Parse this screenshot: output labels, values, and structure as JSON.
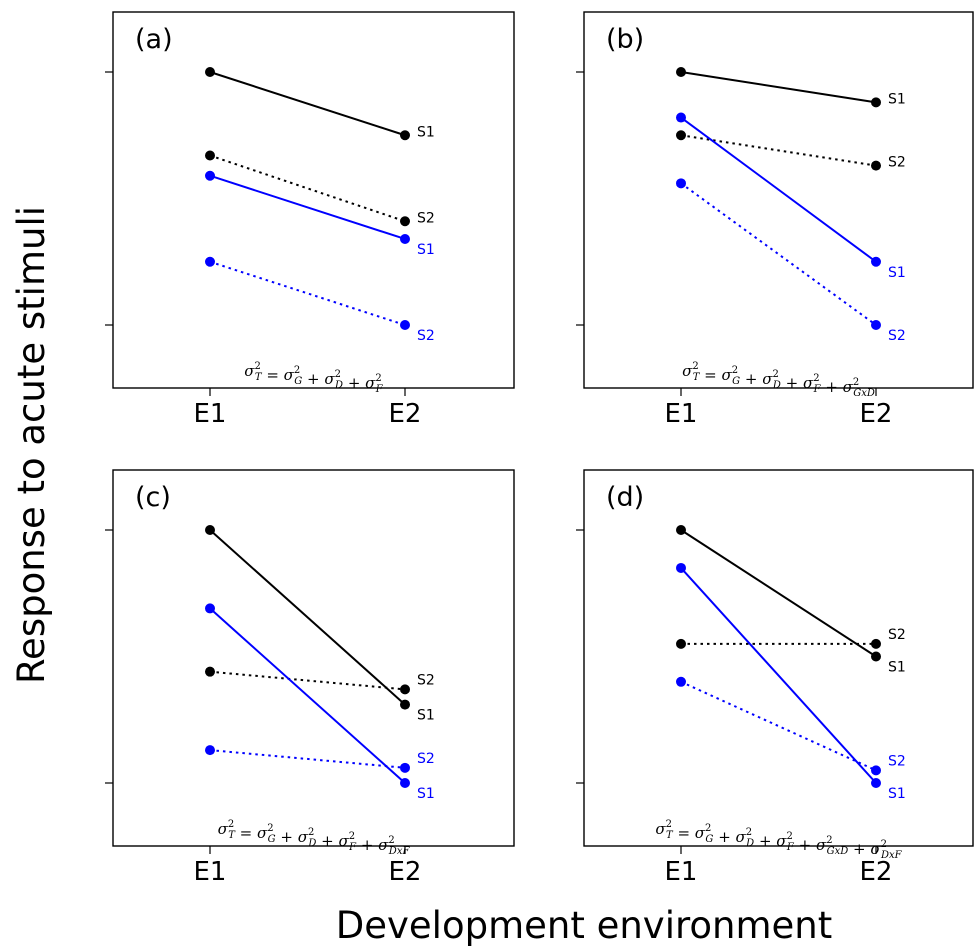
{
  "figure": {
    "ylabel": "Response to acute stimuli",
    "xlabel": "Development environment"
  },
  "colors": {
    "black": "#000000",
    "blue": "#0000ff"
  },
  "chart_data": [
    {
      "type": "line",
      "panel": "(a)",
      "categories": [
        "E1",
        "E2"
      ],
      "ylim": [
        0,
        1
      ],
      "formula": {
        "terms": [
          {
            "sub": "T"
          },
          {
            "op": " = "
          },
          {
            "sub": "G"
          },
          {
            "op": " + "
          },
          {
            "sub": "D"
          },
          {
            "op": " + "
          },
          {
            "sub": "F"
          }
        ]
      },
      "series": [
        {
          "name": "S1",
          "group": "black",
          "style": "solid",
          "values": [
            1.0,
            0.75
          ]
        },
        {
          "name": "S2",
          "group": "black",
          "style": "dotted",
          "values": [
            0.67,
            0.41
          ]
        },
        {
          "name": "S1",
          "group": "blue",
          "style": "solid",
          "values": [
            0.59,
            0.34
          ]
        },
        {
          "name": "S2",
          "group": "blue",
          "style": "dotted",
          "values": [
            0.25,
            0.0
          ]
        }
      ]
    },
    {
      "type": "line",
      "panel": "(b)",
      "categories": [
        "E1",
        "E2"
      ],
      "ylim": [
        0,
        1
      ],
      "formula": {
        "terms": [
          {
            "sub": "T"
          },
          {
            "op": " = "
          },
          {
            "sub": "G"
          },
          {
            "op": " + "
          },
          {
            "sub": "D"
          },
          {
            "op": " + "
          },
          {
            "sub": "F"
          },
          {
            "op": " + "
          },
          {
            "sub": "GxD"
          }
        ]
      },
      "series": [
        {
          "name": "S1",
          "group": "black",
          "style": "solid",
          "values": [
            1.0,
            0.88
          ]
        },
        {
          "name": "S2",
          "group": "black",
          "style": "dotted",
          "values": [
            0.75,
            0.63
          ]
        },
        {
          "name": "S1",
          "group": "blue",
          "style": "solid",
          "values": [
            0.82,
            0.25
          ]
        },
        {
          "name": "S2",
          "group": "blue",
          "style": "dotted",
          "values": [
            0.56,
            0.0
          ]
        }
      ]
    },
    {
      "type": "line",
      "panel": "(c)",
      "categories": [
        "E1",
        "E2"
      ],
      "ylim": [
        0,
        1
      ],
      "formula": {
        "terms": [
          {
            "sub": "T"
          },
          {
            "op": " = "
          },
          {
            "sub": "G"
          },
          {
            "op": " + "
          },
          {
            "sub": "D"
          },
          {
            "op": " + "
          },
          {
            "sub": "F"
          },
          {
            "op": " + "
          },
          {
            "sub": "DxF"
          }
        ]
      },
      "series": [
        {
          "name": "S1",
          "group": "black",
          "style": "solid",
          "values": [
            1.0,
            0.31
          ]
        },
        {
          "name": "S2",
          "group": "black",
          "style": "dotted",
          "values": [
            0.44,
            0.37
          ]
        },
        {
          "name": "S1",
          "group": "blue",
          "style": "solid",
          "values": [
            0.69,
            0.0
          ]
        },
        {
          "name": "S2",
          "group": "blue",
          "style": "dotted",
          "values": [
            0.13,
            0.06
          ]
        }
      ]
    },
    {
      "type": "line",
      "panel": "(d)",
      "categories": [
        "E1",
        "E2"
      ],
      "ylim": [
        0,
        1
      ],
      "formula": {
        "terms": [
          {
            "sub": "T"
          },
          {
            "op": " = "
          },
          {
            "sub": "G"
          },
          {
            "op": " + "
          },
          {
            "sub": "D"
          },
          {
            "op": " + "
          },
          {
            "sub": "F"
          },
          {
            "op": " + "
          },
          {
            "sub": "GxD"
          },
          {
            "op": " + "
          },
          {
            "sub": "DxF"
          }
        ]
      },
      "series": [
        {
          "name": "S1",
          "group": "black",
          "style": "solid",
          "values": [
            1.0,
            0.5
          ]
        },
        {
          "name": "S2",
          "group": "black",
          "style": "dotted",
          "values": [
            0.55,
            0.55
          ]
        },
        {
          "name": "S1",
          "group": "blue",
          "style": "solid",
          "values": [
            0.85,
            0.0
          ]
        },
        {
          "name": "S2",
          "group": "blue",
          "style": "dotted",
          "values": [
            0.4,
            0.05
          ]
        }
      ]
    }
  ]
}
